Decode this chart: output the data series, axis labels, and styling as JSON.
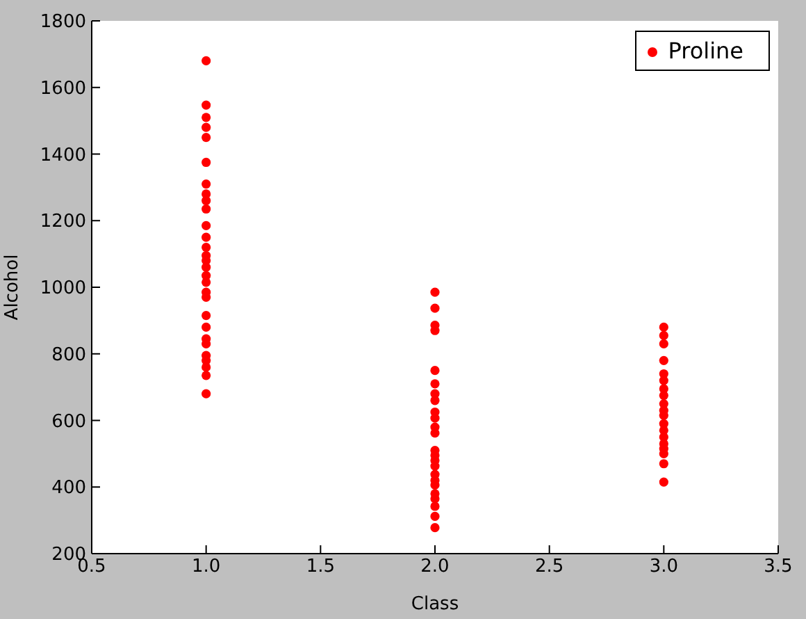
{
  "chart_data": {
    "type": "scatter",
    "xlabel": "Class",
    "ylabel": "Alcohol",
    "xlim": [
      0.5,
      3.5
    ],
    "xticks": [
      0.5,
      {
        "value": 1,
        "label": "1.0"
      },
      1.5,
      {
        "value": 2,
        "label": "2.0"
      },
      2.5,
      {
        "value": 3,
        "label": "3.0"
      },
      3.5
    ],
    "ylim": [
      200,
      1800
    ],
    "yticks": [
      200,
      400,
      600,
      800,
      1000,
      1200,
      1400,
      1600,
      1800
    ],
    "legend": "top right",
    "marker": "circle",
    "grid": false,
    "series": [
      {
        "name": "Proline",
        "color": "#ff0000",
        "x": [
          1,
          1,
          1,
          1,
          1,
          1,
          1,
          1,
          1,
          1,
          1,
          1,
          1,
          1,
          1,
          1,
          1,
          1,
          1,
          1,
          1,
          1,
          1,
          1,
          1,
          1,
          1,
          1,
          1,
          2,
          2,
          2,
          2,
          2,
          2,
          2,
          2,
          2,
          2,
          2,
          2,
          2,
          2,
          2,
          2,
          2,
          2,
          2,
          2,
          2,
          2,
          2,
          2,
          3,
          3,
          3,
          3,
          3,
          3,
          3,
          3,
          3,
          3,
          3,
          3,
          3,
          3,
          3,
          3,
          3,
          3,
          3
        ],
        "values": [
          680,
          735,
          760,
          780,
          795,
          830,
          845,
          880,
          915,
          970,
          985,
          1015,
          1035,
          1060,
          1080,
          1095,
          1120,
          1150,
          1185,
          1235,
          1260,
          1280,
          1310,
          1375,
          1450,
          1480,
          1510,
          1547,
          1680,
          278,
          312,
          342,
          365,
          380,
          406,
          420,
          438,
          463,
          480,
          495,
          510,
          562,
          580,
          607,
          625,
          660,
          680,
          710,
          750,
          870,
          886,
          937,
          985,
          415,
          470,
          500,
          515,
          530,
          550,
          570,
          590,
          615,
          630,
          650,
          675,
          695,
          720,
          740,
          780,
          830,
          855,
          880
        ]
      }
    ]
  }
}
